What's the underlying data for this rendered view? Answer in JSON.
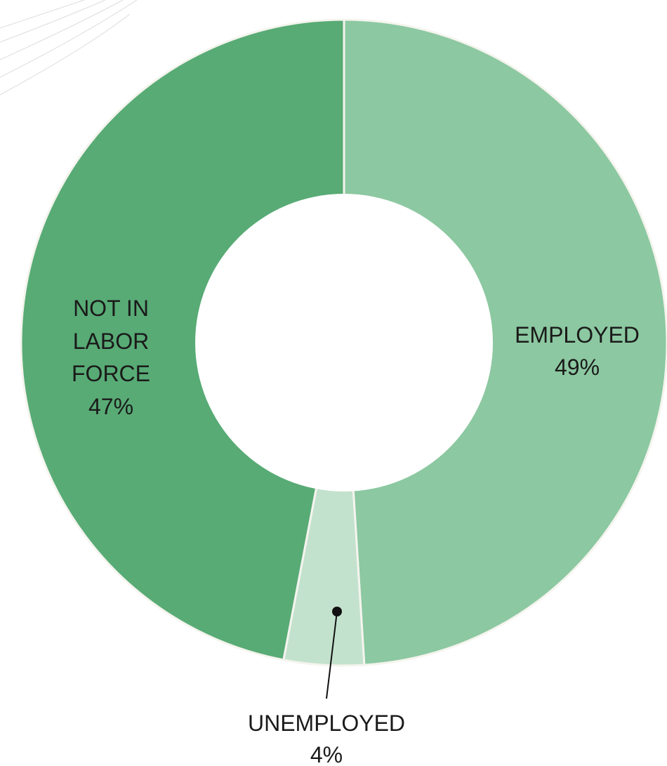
{
  "chart_data": {
    "type": "pie",
    "variant": "donut",
    "slices": [
      {
        "label": "EMPLOYED",
        "value": 49,
        "value_label": "49%",
        "color": "#8cc8a1"
      },
      {
        "label": "UNEMPLOYED",
        "value": 4,
        "value_label": "4%",
        "color": "#c3e2cd"
      },
      {
        "label": "NOT IN LABOR FORCE",
        "value": 47,
        "value_label": "47%",
        "color": "#58ab75"
      }
    ],
    "labels": {
      "employed": {
        "lines": [
          "EMPLOYED"
        ],
        "value": "49%"
      },
      "unemployed": {
        "lines": [
          "UNEMPLOYED"
        ],
        "value": "4%"
      },
      "not_in_labor_force": {
        "lines": [
          "NOT IN",
          "LABOR",
          "FORCE"
        ],
        "value": "47%"
      }
    },
    "legend": "none",
    "grid": false
  }
}
